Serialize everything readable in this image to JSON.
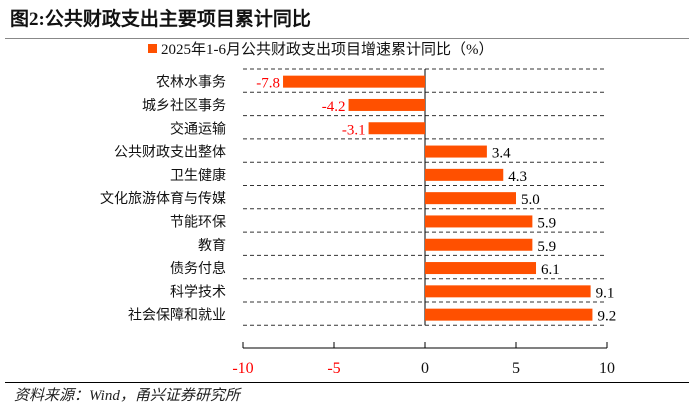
{
  "header": {
    "title": "图2:公共财政支出主要项目累计同比"
  },
  "footer": {
    "source": "资料来源：Wind，甬兴证券研究所"
  },
  "chart_data": {
    "type": "bar",
    "orientation": "horizontal",
    "series": [
      {
        "name": "2025年1-6月公共财政支出项目增速累计同比（%）",
        "values": [
          -7.8,
          -4.2,
          -3.1,
          3.4,
          4.3,
          5.0,
          5.9,
          5.9,
          6.1,
          9.1,
          9.2
        ]
      }
    ],
    "categories": [
      "农林水事务",
      "城乡社区事务",
      "交通运输",
      "公共财政支出整体",
      "卫生健康",
      "文化旅游体育与传媒",
      "节能环保",
      "教育",
      "债务付息",
      "科学技术",
      "社会保障和就业"
    ],
    "data_labels": [
      "-7.8",
      "-4.2",
      "-3.1",
      "3.4",
      "4.3",
      "5.0",
      "5.9",
      "5.9",
      "6.1",
      "9.1",
      "9.2"
    ],
    "xlim": [
      -10,
      10
    ],
    "xticks": [
      "-10",
      "-5",
      "0",
      "5",
      "10"
    ],
    "grid": "dashed horizontal separators",
    "legend": "top",
    "colors": {
      "bar": "#FF5000",
      "negative_label": "#FF0000",
      "positive_label": "#000000"
    }
  }
}
